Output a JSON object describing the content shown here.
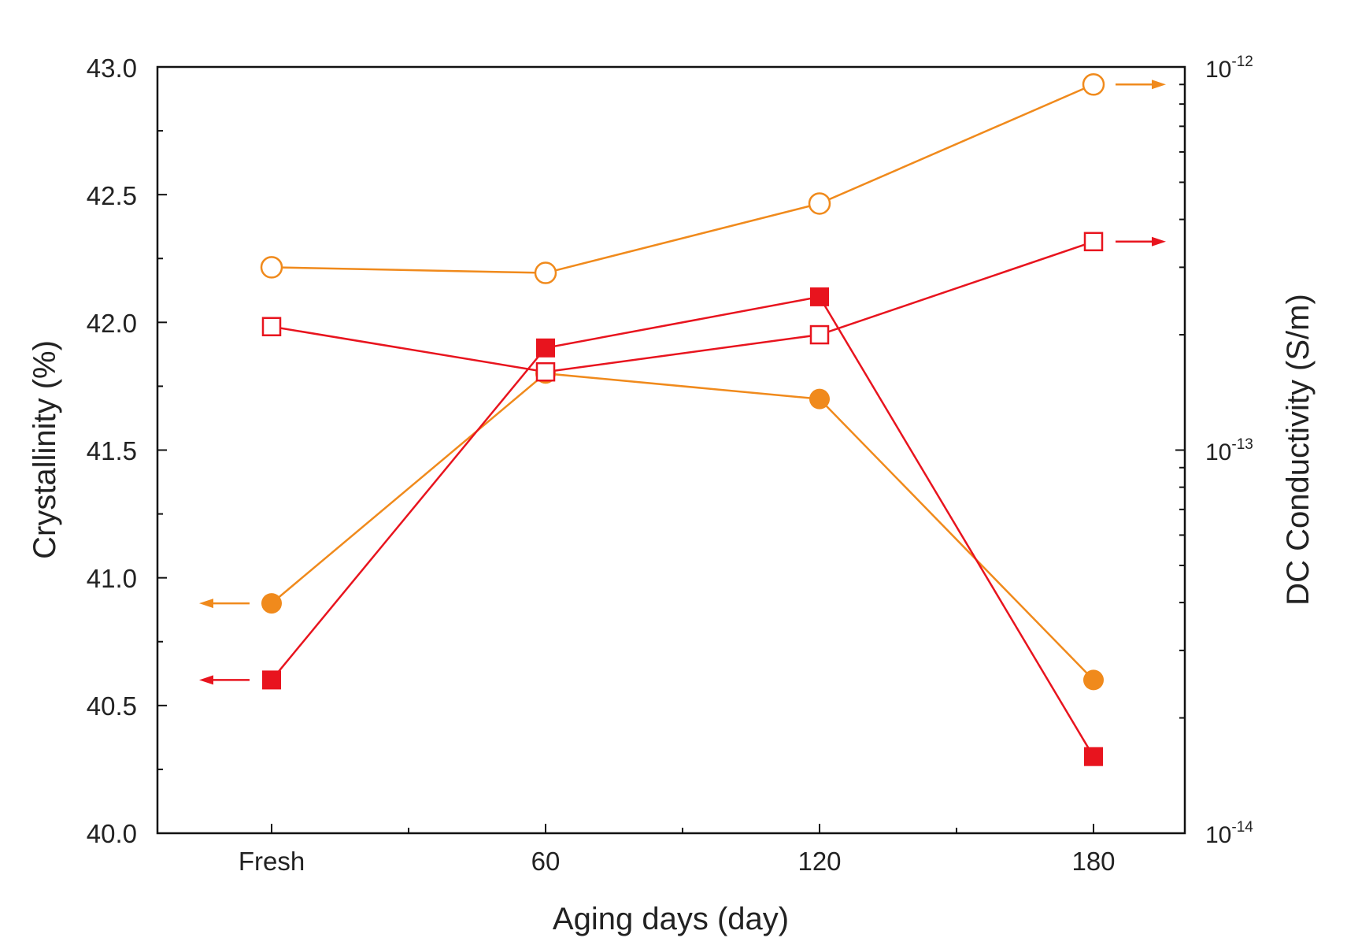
{
  "chart_data": {
    "type": "line",
    "xlabel": "Aging days (day)",
    "ylabel": "Crystallinity (%)",
    "y2label": "DC Conductivity (S/m)",
    "categories": [
      "Fresh",
      "60",
      "120",
      "180"
    ],
    "ylim": [
      40.0,
      43.0
    ],
    "yticks": [
      "40.0",
      "40.5",
      "41.0",
      "41.5",
      "42.0",
      "42.5",
      "43.0"
    ],
    "y2lim": [
      1e-14,
      1e-12
    ],
    "y2scale": "log",
    "y2ticks": [
      {
        "base": "10",
        "exp": "-14"
      },
      {
        "base": "10",
        "exp": "-13"
      },
      {
        "base": "10",
        "exp": "-12"
      }
    ],
    "colors": {
      "orange": "#f08a1c",
      "red": "#e8141e"
    },
    "series": [
      {
        "name": "Crystallinity (orange)",
        "axis": "left",
        "marker": "filled-circle",
        "color": "#f08a1c",
        "values": [
          40.9,
          41.8,
          41.7,
          40.6
        ],
        "arrow": "left"
      },
      {
        "name": "Crystallinity (red)",
        "axis": "left",
        "marker": "filled-square",
        "color": "#e8141e",
        "values": [
          40.6,
          41.9,
          42.1,
          40.3
        ],
        "arrow": "left"
      },
      {
        "name": "DC Conductivity (orange)",
        "axis": "right",
        "marker": "open-circle",
        "color": "#f08a1c",
        "values": [
          3e-13,
          2.9e-13,
          4.4e-13,
          9e-13
        ],
        "arrow": "right"
      },
      {
        "name": "DC Conductivity (red)",
        "axis": "right",
        "marker": "open-square",
        "color": "#e8141e",
        "values": [
          2.1e-13,
          1.6e-13,
          2e-13,
          3.5e-13
        ],
        "arrow": "right"
      }
    ]
  }
}
